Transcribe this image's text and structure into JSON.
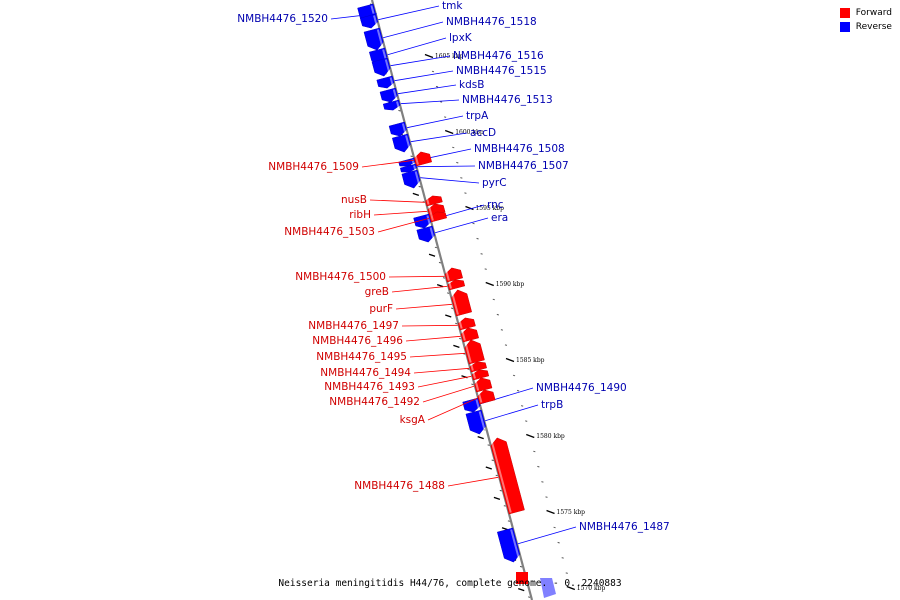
{
  "legend": {
    "forward_label": "Forward",
    "reverse_label": "Reverse",
    "forward_color": "#ff0000",
    "reverse_color": "#0000ff"
  },
  "footer": {
    "text": "Neisseria meningitidis H44/76, complete genome. - 0..2240883"
  },
  "ticks": [
    {
      "label": "1605 kbp",
      "kbp": 1605
    },
    {
      "label": "1600 kbp",
      "kbp": 1600
    },
    {
      "label": "1595 kbp",
      "kbp": 1595
    },
    {
      "label": "1590 kbp",
      "kbp": 1590
    },
    {
      "label": "1585 kbp",
      "kbp": 1585
    },
    {
      "label": "1580 kbp",
      "kbp": 1580
    },
    {
      "label": "1575 kbp",
      "kbp": 1575
    },
    {
      "label": "1570 kbp",
      "kbp": 1570
    }
  ],
  "genes": [
    {
      "name": "NMBH4476_1520",
      "strand": "reverse"
    },
    {
      "name": "tmk",
      "strand": "reverse"
    },
    {
      "name": "NMBH4476_1518",
      "strand": "reverse"
    },
    {
      "name": "lpxK",
      "strand": "reverse"
    },
    {
      "name": "NMBH4476_1516",
      "strand": "reverse"
    },
    {
      "name": "NMBH4476_1515",
      "strand": "reverse"
    },
    {
      "name": "kdsB",
      "strand": "reverse"
    },
    {
      "name": "NMBH4476_1513",
      "strand": "reverse"
    },
    {
      "name": "trpA",
      "strand": "reverse"
    },
    {
      "name": "accD",
      "strand": "reverse"
    },
    {
      "name": "NMBH4476_1508",
      "strand": "reverse"
    },
    {
      "name": "NMBH4476_1509",
      "strand": "forward"
    },
    {
      "name": "NMBH4476_1507",
      "strand": "reverse"
    },
    {
      "name": "pyrC",
      "strand": "reverse"
    },
    {
      "name": "nusB",
      "strand": "forward"
    },
    {
      "name": "rnc",
      "strand": "reverse"
    },
    {
      "name": "ribH",
      "strand": "forward"
    },
    {
      "name": "era",
      "strand": "reverse"
    },
    {
      "name": "NMBH4476_1503",
      "strand": "forward"
    },
    {
      "name": "NMBH4476_1500",
      "strand": "forward"
    },
    {
      "name": "greB",
      "strand": "forward"
    },
    {
      "name": "purF",
      "strand": "forward"
    },
    {
      "name": "NMBH4476_1497",
      "strand": "forward"
    },
    {
      "name": "NMBH4476_1496",
      "strand": "forward"
    },
    {
      "name": "NMBH4476_1495",
      "strand": "forward"
    },
    {
      "name": "NMBH4476_1494",
      "strand": "forward"
    },
    {
      "name": "NMBH4476_1493",
      "strand": "forward"
    },
    {
      "name": "NMBH4476_1492",
      "strand": "forward"
    },
    {
      "name": "NMBH4476_1490",
      "strand": "reverse"
    },
    {
      "name": "trpB",
      "strand": "reverse"
    },
    {
      "name": "ksgA",
      "strand": "forward"
    },
    {
      "name": "NMBH4476_1488",
      "strand": "forward"
    },
    {
      "name": "NMBH4476_1487",
      "strand": "reverse"
    }
  ]
}
